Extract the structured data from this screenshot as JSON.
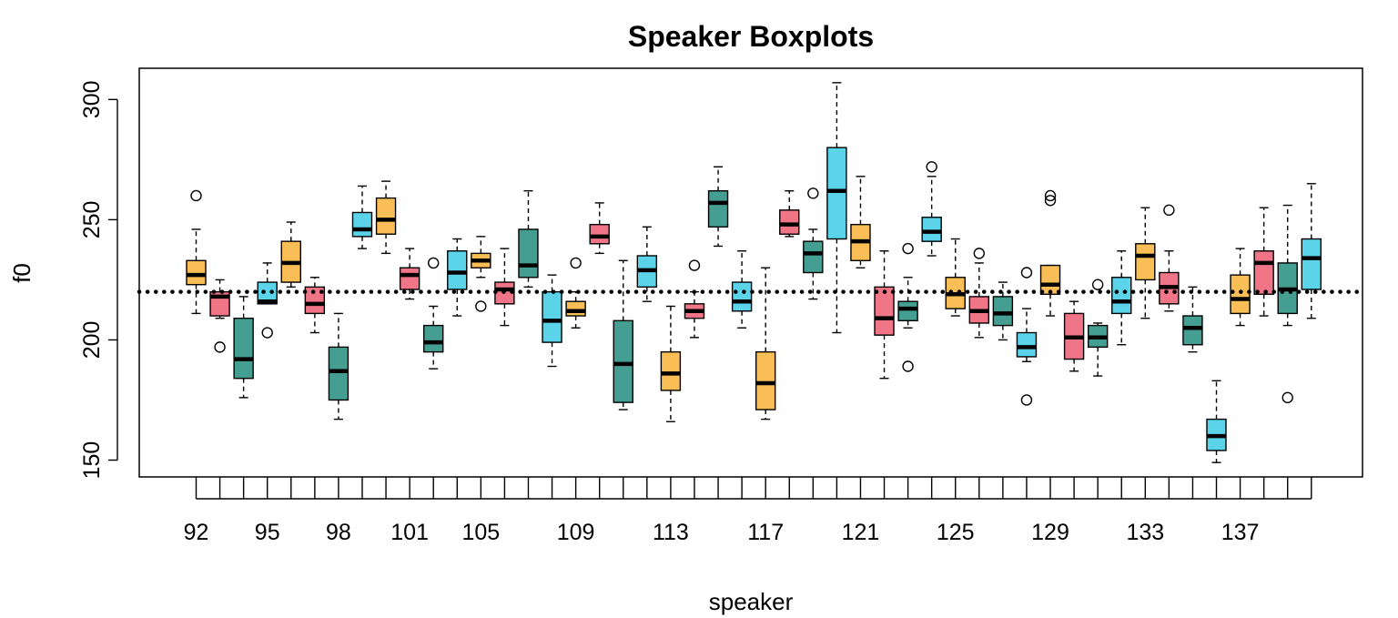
{
  "chart_data": {
    "type": "boxplot",
    "title": "Speaker Boxplots",
    "xlabel": "speaker",
    "ylabel": "f0",
    "ylim": [
      143,
      313
    ],
    "y_ticks": [
      150,
      200,
      250,
      300
    ],
    "x_tick_labels": [
      "92",
      "95",
      "98",
      "101",
      "105",
      "109",
      "113",
      "117",
      "121",
      "125",
      "129",
      "133",
      "137"
    ],
    "x_tick_label_positions": [
      1,
      4,
      7,
      10,
      13,
      17,
      21,
      25,
      29,
      33,
      37,
      41,
      45
    ],
    "reference_line": {
      "y": 220,
      "style": "dotted"
    },
    "colors": {
      "orange": "#F9BE55",
      "pink": "#F07587",
      "teal": "#459E92",
      "cyan": "#5BD4EA",
      "outline": "#000000"
    },
    "boxes": [
      {
        "pos": 1,
        "color": "orange",
        "lower_whisker": 211,
        "q1": 223,
        "median": 227,
        "q3": 233,
        "upper_whisker": 246,
        "outliers": [
          260
        ]
      },
      {
        "pos": 2,
        "color": "pink",
        "lower_whisker": 209,
        "q1": 210,
        "median": 218,
        "q3": 220,
        "upper_whisker": 225,
        "outliers": [
          197
        ]
      },
      {
        "pos": 3,
        "color": "teal",
        "lower_whisker": 176,
        "q1": 184,
        "median": 192,
        "q3": 209,
        "upper_whisker": 218,
        "outliers": []
      },
      {
        "pos": 4,
        "color": "cyan",
        "lower_whisker": 215,
        "q1": 215,
        "median": 216,
        "q3": 224,
        "upper_whisker": 232,
        "outliers": [
          203
        ]
      },
      {
        "pos": 5,
        "color": "orange",
        "lower_whisker": 222,
        "q1": 224,
        "median": 232,
        "q3": 241,
        "upper_whisker": 249,
        "outliers": []
      },
      {
        "pos": 6,
        "color": "pink",
        "lower_whisker": 203,
        "q1": 211,
        "median": 215,
        "q3": 222,
        "upper_whisker": 226,
        "outliers": []
      },
      {
        "pos": 7,
        "color": "teal",
        "lower_whisker": 167,
        "q1": 175,
        "median": 187,
        "q3": 197,
        "upper_whisker": 211,
        "outliers": []
      },
      {
        "pos": 8,
        "color": "cyan",
        "lower_whisker": 238,
        "q1": 243,
        "median": 246,
        "q3": 253,
        "upper_whisker": 264,
        "outliers": []
      },
      {
        "pos": 9,
        "color": "orange",
        "lower_whisker": 236,
        "q1": 244,
        "median": 250,
        "q3": 259,
        "upper_whisker": 266,
        "outliers": []
      },
      {
        "pos": 10,
        "color": "pink",
        "lower_whisker": 217,
        "q1": 221,
        "median": 227,
        "q3": 230,
        "upper_whisker": 238,
        "outliers": []
      },
      {
        "pos": 11,
        "color": "teal",
        "lower_whisker": 188,
        "q1": 195,
        "median": 199,
        "q3": 206,
        "upper_whisker": 214,
        "outliers": [
          232
        ]
      },
      {
        "pos": 12,
        "color": "cyan",
        "lower_whisker": 210,
        "q1": 221,
        "median": 228,
        "q3": 237,
        "upper_whisker": 242,
        "outliers": []
      },
      {
        "pos": 13,
        "color": "orange",
        "lower_whisker": 226,
        "q1": 230,
        "median": 233,
        "q3": 236,
        "upper_whisker": 243,
        "outliers": [
          214
        ]
      },
      {
        "pos": 14,
        "color": "pink",
        "lower_whisker": 206,
        "q1": 215,
        "median": 221,
        "q3": 224,
        "upper_whisker": 238,
        "outliers": []
      },
      {
        "pos": 15,
        "color": "teal",
        "lower_whisker": 222,
        "q1": 226,
        "median": 231,
        "q3": 246,
        "upper_whisker": 262,
        "outliers": []
      },
      {
        "pos": 16,
        "color": "cyan",
        "lower_whisker": 189,
        "q1": 199,
        "median": 208,
        "q3": 220,
        "upper_whisker": 227,
        "outliers": []
      },
      {
        "pos": 17,
        "color": "orange",
        "lower_whisker": 205,
        "q1": 210,
        "median": 212,
        "q3": 216,
        "upper_whisker": 220,
        "outliers": [
          232
        ]
      },
      {
        "pos": 18,
        "color": "pink",
        "lower_whisker": 236,
        "q1": 240,
        "median": 243,
        "q3": 248,
        "upper_whisker": 257,
        "outliers": []
      },
      {
        "pos": 19,
        "color": "teal",
        "lower_whisker": 171,
        "q1": 174,
        "median": 190,
        "q3": 208,
        "upper_whisker": 233,
        "outliers": []
      },
      {
        "pos": 20,
        "color": "cyan",
        "lower_whisker": 216,
        "q1": 222,
        "median": 229,
        "q3": 235,
        "upper_whisker": 247,
        "outliers": []
      },
      {
        "pos": 21,
        "color": "orange",
        "lower_whisker": 166,
        "q1": 179,
        "median": 186,
        "q3": 195,
        "upper_whisker": 214,
        "outliers": []
      },
      {
        "pos": 22,
        "color": "pink",
        "lower_whisker": 201,
        "q1": 209,
        "median": 212,
        "q3": 215,
        "upper_whisker": 220,
        "outliers": [
          231
        ]
      },
      {
        "pos": 23,
        "color": "teal",
        "lower_whisker": 239,
        "q1": 247,
        "median": 257,
        "q3": 262,
        "upper_whisker": 272,
        "outliers": []
      },
      {
        "pos": 24,
        "color": "cyan",
        "lower_whisker": 205,
        "q1": 212,
        "median": 216,
        "q3": 224,
        "upper_whisker": 237,
        "outliers": []
      },
      {
        "pos": 25,
        "color": "orange",
        "lower_whisker": 167,
        "q1": 171,
        "median": 182,
        "q3": 195,
        "upper_whisker": 230,
        "outliers": []
      },
      {
        "pos": 26,
        "color": "pink",
        "lower_whisker": 243,
        "q1": 244,
        "median": 248,
        "q3": 254,
        "upper_whisker": 262,
        "outliers": []
      },
      {
        "pos": 27,
        "color": "teal",
        "lower_whisker": 217,
        "q1": 228,
        "median": 236,
        "q3": 241,
        "upper_whisker": 246,
        "outliers": [
          261
        ]
      },
      {
        "pos": 28,
        "color": "cyan",
        "lower_whisker": 203,
        "q1": 242,
        "median": 262,
        "q3": 280,
        "upper_whisker": 307,
        "outliers": []
      },
      {
        "pos": 29,
        "color": "orange",
        "lower_whisker": 230,
        "q1": 233,
        "median": 241,
        "q3": 248,
        "upper_whisker": 268,
        "outliers": []
      },
      {
        "pos": 30,
        "color": "pink",
        "lower_whisker": 184,
        "q1": 202,
        "median": 209,
        "q3": 222,
        "upper_whisker": 237,
        "outliers": []
      },
      {
        "pos": 31,
        "color": "teal",
        "lower_whisker": 205,
        "q1": 208,
        "median": 213,
        "q3": 216,
        "upper_whisker": 226,
        "outliers": [
          189,
          238
        ]
      },
      {
        "pos": 32,
        "color": "cyan",
        "lower_whisker": 235,
        "q1": 241,
        "median": 245,
        "q3": 251,
        "upper_whisker": 268,
        "outliers": [
          272
        ]
      },
      {
        "pos": 33,
        "color": "orange",
        "lower_whisker": 210,
        "q1": 213,
        "median": 219,
        "q3": 226,
        "upper_whisker": 242,
        "outliers": []
      },
      {
        "pos": 34,
        "color": "pink",
        "lower_whisker": 201,
        "q1": 207,
        "median": 212,
        "q3": 218,
        "upper_whisker": 232,
        "outliers": [
          236
        ]
      },
      {
        "pos": 35,
        "color": "teal",
        "lower_whisker": 200,
        "q1": 206,
        "median": 211,
        "q3": 218,
        "upper_whisker": 224,
        "outliers": []
      },
      {
        "pos": 36,
        "color": "cyan",
        "lower_whisker": 191,
        "q1": 193,
        "median": 197,
        "q3": 203,
        "upper_whisker": 213,
        "outliers": [
          175,
          228
        ]
      },
      {
        "pos": 37,
        "color": "orange",
        "lower_whisker": 210,
        "q1": 219,
        "median": 223,
        "q3": 231,
        "upper_whisker": 231,
        "outliers": [
          258,
          260
        ]
      },
      {
        "pos": 38,
        "color": "pink",
        "lower_whisker": 187,
        "q1": 192,
        "median": 201,
        "q3": 211,
        "upper_whisker": 216,
        "outliers": []
      },
      {
        "pos": 39,
        "color": "teal",
        "lower_whisker": 185,
        "q1": 197,
        "median": 201,
        "q3": 206,
        "upper_whisker": 207,
        "outliers": [
          223
        ]
      },
      {
        "pos": 40,
        "color": "cyan",
        "lower_whisker": 198,
        "q1": 211,
        "median": 216,
        "q3": 226,
        "upper_whisker": 237,
        "outliers": []
      },
      {
        "pos": 41,
        "color": "orange",
        "lower_whisker": 209,
        "q1": 225,
        "median": 235,
        "q3": 240,
        "upper_whisker": 255,
        "outliers": []
      },
      {
        "pos": 42,
        "color": "pink",
        "lower_whisker": 212,
        "q1": 215,
        "median": 222,
        "q3": 228,
        "upper_whisker": 237,
        "outliers": [
          254
        ]
      },
      {
        "pos": 43,
        "color": "teal",
        "lower_whisker": 195,
        "q1": 198,
        "median": 205,
        "q3": 210,
        "upper_whisker": 222,
        "outliers": []
      },
      {
        "pos": 44,
        "color": "cyan",
        "lower_whisker": 149,
        "q1": 154,
        "median": 160,
        "q3": 167,
        "upper_whisker": 183,
        "outliers": []
      },
      {
        "pos": 45,
        "color": "orange",
        "lower_whisker": 206,
        "q1": 211,
        "median": 217,
        "q3": 227,
        "upper_whisker": 238,
        "outliers": []
      },
      {
        "pos": 46,
        "color": "pink",
        "lower_whisker": 210,
        "q1": 219,
        "median": 232,
        "q3": 237,
        "upper_whisker": 255,
        "outliers": []
      },
      {
        "pos": 47,
        "color": "teal",
        "lower_whisker": 206,
        "q1": 211,
        "median": 221,
        "q3": 232,
        "upper_whisker": 256,
        "outliers": [
          176
        ]
      },
      {
        "pos": 48,
        "color": "cyan",
        "lower_whisker": 209,
        "q1": 221,
        "median": 234,
        "q3": 242,
        "upper_whisker": 265,
        "outliers": []
      }
    ]
  }
}
